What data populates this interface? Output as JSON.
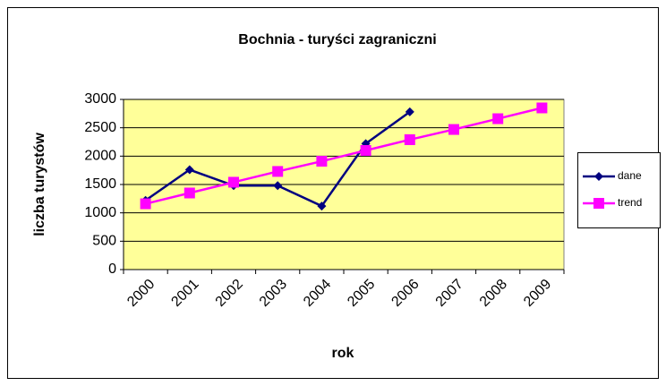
{
  "chart_data": {
    "type": "line",
    "title": "Bochnia - turyści zagraniczni",
    "xlabel": "rok",
    "ylabel": "liczba turystów",
    "categories": [
      "2000",
      "2001",
      "2002",
      "2003",
      "2004",
      "2005",
      "2006",
      "2007",
      "2008",
      "2009"
    ],
    "series": [
      {
        "name": "dane",
        "color": "#000080",
        "marker": "diamond",
        "values": [
          1220,
          1760,
          1480,
          1480,
          1120,
          2220,
          2780,
          null,
          null,
          null
        ]
      },
      {
        "name": "trend",
        "color": "#ff00ff",
        "marker": "square",
        "values": [
          1160,
          1350,
          1540,
          1730,
          1910,
          2100,
          2290,
          2470,
          2660,
          2850
        ]
      }
    ],
    "ylim": [
      0,
      3000
    ],
    "yticks": [
      0,
      500,
      1000,
      1500,
      2000,
      2500,
      3000
    ],
    "grid": true,
    "legend": "right",
    "plot_background": "#ffff99"
  }
}
